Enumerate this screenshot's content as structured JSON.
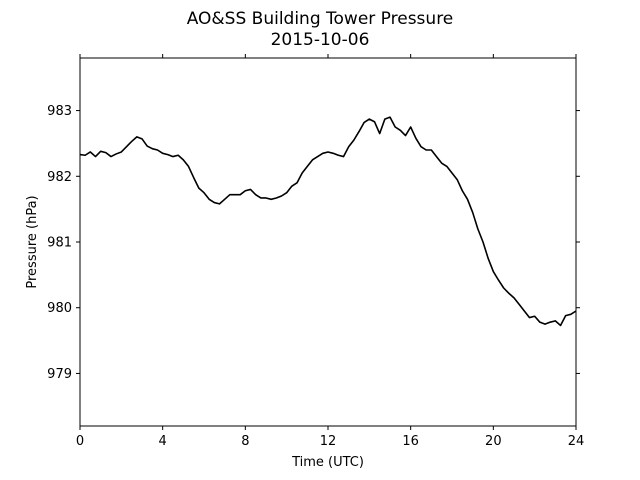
{
  "chart_data": {
    "type": "line",
    "title": "AO&SS Building Tower Pressure",
    "subtitle": "2015-10-06",
    "xlabel": "Time (UTC)",
    "ylabel": "Pressure (hPa)",
    "xlim": [
      0,
      24
    ],
    "ylim": [
      978.2,
      983.8
    ],
    "xticks": [
      0,
      4,
      8,
      12,
      16,
      20,
      24
    ],
    "xtick_labels": [
      "0",
      "4",
      "8",
      "12",
      "16",
      "20",
      "24"
    ],
    "yticks": [
      979,
      980,
      981,
      982,
      983
    ],
    "ytick_labels": [
      "979",
      "980",
      "981",
      "982",
      "983"
    ],
    "grid": false,
    "line_color": "#000000",
    "series": [
      {
        "x": [
          0,
          0.25,
          0.5,
          0.75,
          1.0,
          1.25,
          1.5,
          1.75,
          2.0,
          2.25,
          2.5,
          2.75,
          3.0,
          3.25,
          3.5,
          3.75,
          4.0,
          4.25,
          4.5,
          4.75,
          5.0,
          5.25,
          5.5,
          5.75,
          6.0,
          6.25,
          6.5,
          6.75,
          7.0,
          7.25,
          7.5,
          7.75,
          8.0,
          8.25,
          8.5,
          8.75,
          9.0,
          9.25,
          9.5,
          9.75,
          10.0,
          10.25,
          10.5,
          10.75,
          11.0,
          11.25,
          11.5,
          11.75,
          12.0,
          12.25,
          12.5,
          12.75,
          13.0,
          13.25,
          13.5,
          13.75,
          14.0,
          14.25,
          14.5,
          14.75,
          15.0,
          15.25,
          15.5,
          15.75,
          16.0,
          16.25,
          16.5,
          16.75,
          17.0,
          17.25,
          17.5,
          17.75,
          18.0,
          18.25,
          18.5,
          18.75,
          19.0,
          19.25,
          19.5,
          19.75,
          20.0,
          20.25,
          20.5,
          20.75,
          21.0,
          21.25,
          21.5,
          21.75,
          22.0,
          22.25,
          22.5,
          22.75,
          23.0,
          23.25,
          23.5,
          23.75,
          24.0
        ],
        "values": [
          982.33,
          982.32,
          982.37,
          982.3,
          982.38,
          982.36,
          982.3,
          982.34,
          982.37,
          982.45,
          982.53,
          982.6,
          982.57,
          982.46,
          982.42,
          982.4,
          982.35,
          982.33,
          982.3,
          982.32,
          982.25,
          982.15,
          981.98,
          981.82,
          981.75,
          981.65,
          981.6,
          981.58,
          981.65,
          981.72,
          981.72,
          981.72,
          981.78,
          981.8,
          981.72,
          981.67,
          981.67,
          981.65,
          981.67,
          981.7,
          981.75,
          981.85,
          981.9,
          982.05,
          982.15,
          982.25,
          982.3,
          982.35,
          982.37,
          982.35,
          982.32,
          982.3,
          982.45,
          982.55,
          982.68,
          982.82,
          982.87,
          982.83,
          982.65,
          982.87,
          982.9,
          982.75,
          982.7,
          982.62,
          982.75,
          982.58,
          982.45,
          982.4,
          982.4,
          982.3,
          982.2,
          982.15,
          982.05,
          981.95,
          981.78,
          981.65,
          981.45,
          981.2,
          981.0,
          980.75,
          980.55,
          980.42,
          980.3,
          980.22,
          980.15,
          980.05,
          979.95,
          979.85,
          979.87,
          979.78,
          979.75,
          979.78,
          979.8,
          979.73,
          979.88,
          979.9,
          979.95
        ]
      }
    ]
  }
}
